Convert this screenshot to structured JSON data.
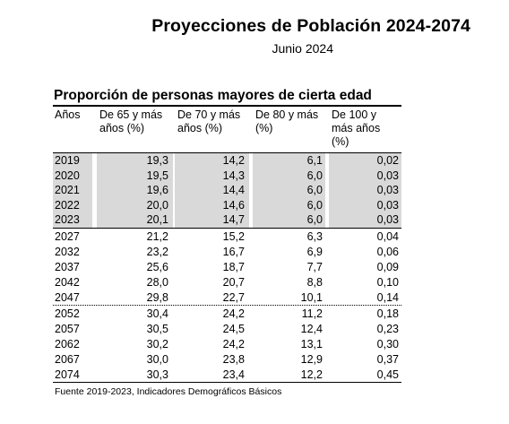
{
  "document": {
    "title": "Proyecciones de Población 2024-2074",
    "subtitle": "Junio 2024"
  },
  "table": {
    "title": "Proporción de personas mayores de cierta edad",
    "headers": {
      "year": "Años",
      "col1": "De 65 y más años (%)",
      "col2": "De 70 y más años (%)",
      "col3": "De 80 y más (%)",
      "col4": "De 100 y más años (%)"
    },
    "rows": [
      {
        "year": "2019",
        "v1": "19,3",
        "v2": "14,2",
        "v3": "6,1",
        "v4": "0,02"
      },
      {
        "year": "2020",
        "v1": "19,5",
        "v2": "14,3",
        "v3": "6,0",
        "v4": "0,03"
      },
      {
        "year": "2021",
        "v1": "19,6",
        "v2": "14,4",
        "v3": "6,0",
        "v4": "0,03"
      },
      {
        "year": "2022",
        "v1": "20,0",
        "v2": "14,6",
        "v3": "6,0",
        "v4": "0,03"
      },
      {
        "year": "2023",
        "v1": "20,1",
        "v2": "14,7",
        "v3": "6,0",
        "v4": "0,03"
      },
      {
        "year": "2027",
        "v1": "21,2",
        "v2": "15,2",
        "v3": "6,3",
        "v4": "0,04"
      },
      {
        "year": "2032",
        "v1": "23,2",
        "v2": "16,7",
        "v3": "6,9",
        "v4": "0,06"
      },
      {
        "year": "2037",
        "v1": "25,6",
        "v2": "18,7",
        "v3": "7,7",
        "v4": "0,09"
      },
      {
        "year": "2042",
        "v1": "28,0",
        "v2": "20,7",
        "v3": "8,8",
        "v4": "0,10"
      },
      {
        "year": "2047",
        "v1": "29,8",
        "v2": "22,7",
        "v3": "10,1",
        "v4": "0,14"
      },
      {
        "year": "2052",
        "v1": "30,4",
        "v2": "24,2",
        "v3": "11,2",
        "v4": "0,18"
      },
      {
        "year": "2057",
        "v1": "30,5",
        "v2": "24,5",
        "v3": "12,4",
        "v4": "0,23"
      },
      {
        "year": "2062",
        "v1": "30,2",
        "v2": "24,2",
        "v3": "13,1",
        "v4": "0,30"
      },
      {
        "year": "2067",
        "v1": "30,0",
        "v2": "23,8",
        "v3": "12,9",
        "v4": "0,37"
      },
      {
        "year": "2074",
        "v1": "30,3",
        "v2": "23,4",
        "v3": "12,2",
        "v4": "0,45"
      }
    ],
    "source": "Fuente 2019-2023, Indicadores Demográficos Básicos"
  },
  "colors": {
    "shade": "#d9d9d9",
    "text": "#000000"
  }
}
